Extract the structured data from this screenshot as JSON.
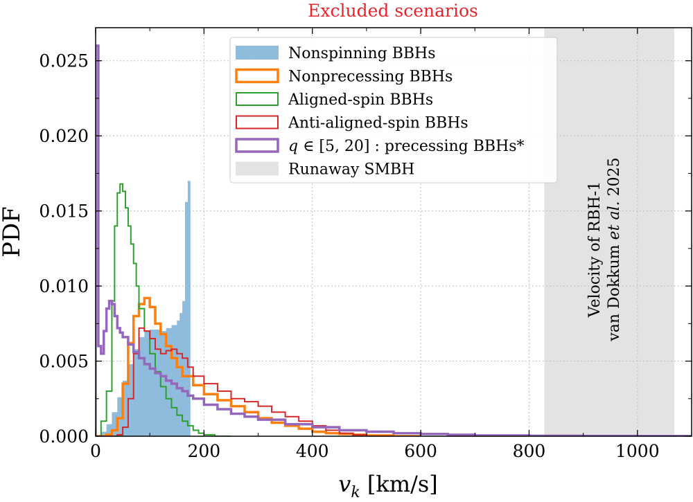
{
  "chart_data": {
    "type": "histogram",
    "title": "Excluded scenarios",
    "xlabel": "v_k [km/s]",
    "ylabel": "PDF",
    "xlim": [
      0,
      1100
    ],
    "ylim": [
      0,
      0.0272
    ],
    "xticks": [
      0,
      200,
      400,
      600,
      800,
      1000
    ],
    "xtick_labels": [
      "0",
      "200",
      "400",
      "600",
      "800",
      "1000"
    ],
    "yticks": [
      0,
      0.005,
      0.01,
      0.015,
      0.02,
      0.025
    ],
    "ytick_labels": [
      "0.000",
      "0.005",
      "0.010",
      "0.015",
      "0.020",
      "0.025"
    ],
    "grid": true,
    "legend_position": "top-center",
    "shaded_region": {
      "name": "Runaway SMBH",
      "x_range": [
        828,
        1068
      ],
      "color": "#e3e3e3",
      "annotation_line1": "Velocity of RBH-1",
      "annotation_line2_pre": "van Dokkum ",
      "annotation_line2_italic": "et al.",
      "annotation_line2_post": " 2025"
    },
    "series": [
      {
        "name": "Nonspinning BBHs",
        "style": "filled",
        "color": "#8fbcdc",
        "x": [
          0,
          10,
          20,
          30,
          40,
          50,
          60,
          70,
          80,
          90,
          100,
          110,
          120,
          130,
          140,
          150,
          155,
          160,
          165,
          170,
          175
        ],
        "y": [
          0,
          0.0003,
          0.0008,
          0.0016,
          0.0026,
          0.0037,
          0.0048,
          0.0058,
          0.0066,
          0.007,
          0.0071,
          0.0071,
          0.007,
          0.0072,
          0.0074,
          0.0077,
          0.0082,
          0.009,
          0.0156,
          0.017,
          0
        ]
      },
      {
        "name": "Nonprecessing BBHs",
        "style": "step-thick",
        "color": "#ff7f0e",
        "x": [
          0,
          20,
          30,
          40,
          50,
          60,
          70,
          80,
          90,
          100,
          110,
          120,
          130,
          140,
          150,
          160,
          180,
          200,
          225,
          250,
          275,
          300,
          325,
          350,
          375,
          400,
          425,
          450,
          475,
          500,
          550,
          600
        ],
        "y": [
          0,
          0.0001,
          0.0004,
          0.0012,
          0.0035,
          0.0062,
          0.008,
          0.0088,
          0.0092,
          0.0086,
          0.0075,
          0.0068,
          0.006,
          0.0052,
          0.0046,
          0.004,
          0.0034,
          0.0028,
          0.0024,
          0.002,
          0.0016,
          0.0012,
          0.0009,
          0.0007,
          0.0005,
          0.0003,
          0.0002,
          0.00015,
          0.0001,
          5e-05,
          0
        ]
      },
      {
        "name": "Aligned-spin BBHs",
        "style": "step",
        "color": "#2ca02c",
        "x": [
          0,
          10,
          20,
          30,
          35,
          40,
          45,
          50,
          55,
          60,
          65,
          70,
          75,
          80,
          90,
          100,
          110,
          120,
          130,
          140,
          150,
          160,
          170,
          180,
          190,
          200,
          220,
          250
        ],
        "y": [
          0,
          0.001,
          0.003,
          0.009,
          0.014,
          0.0162,
          0.0168,
          0.0163,
          0.0152,
          0.014,
          0.0128,
          0.0115,
          0.01,
          0.0085,
          0.007,
          0.0055,
          0.0043,
          0.0033,
          0.0025,
          0.0019,
          0.0014,
          0.001,
          0.0007,
          0.0004,
          0.0002,
          0.0001,
          0
        ]
      },
      {
        "name": "Anti-aligned-spin BBHs",
        "style": "step",
        "color": "#d62728",
        "x": [
          0,
          40,
          50,
          60,
          70,
          80,
          90,
          100,
          110,
          120,
          130,
          140,
          150,
          160,
          170,
          180,
          200,
          225,
          250,
          275,
          300,
          325,
          350,
          375,
          400,
          425,
          450,
          475,
          500,
          550
        ],
        "y": [
          0,
          0.0001,
          0.0006,
          0.0025,
          0.0055,
          0.0072,
          0.007,
          0.0065,
          0.0058,
          0.0055,
          0.0057,
          0.0058,
          0.0055,
          0.0052,
          0.0046,
          0.004,
          0.0035,
          0.003,
          0.0025,
          0.0023,
          0.002,
          0.0016,
          0.0013,
          0.001,
          0.0007,
          0.0004,
          0.0002,
          0.0001,
          0
        ]
      },
      {
        "name": "q ∈ [5, 20] : precessing BBHs*",
        "label_html": [
          {
            "t": "q",
            "i": true
          },
          {
            "t": " ∈ [5, 20] : precessing BBHs*",
            "i": false
          }
        ],
        "style": "step-thick",
        "color": "#9467bd",
        "x": [
          0,
          5,
          10,
          15,
          20,
          25,
          30,
          35,
          40,
          45,
          50,
          60,
          70,
          80,
          90,
          100,
          110,
          120,
          130,
          140,
          150,
          160,
          170,
          180,
          200,
          225,
          250,
          275,
          300,
          350,
          400,
          450,
          500,
          550,
          600,
          650,
          700,
          800,
          900,
          1000,
          1100
        ],
        "y": [
          0.026,
          0.006,
          0.0055,
          0.007,
          0.0085,
          0.009,
          0.0088,
          0.008,
          0.0072,
          0.0069,
          0.0066,
          0.0061,
          0.0056,
          0.0052,
          0.0048,
          0.0045,
          0.0042,
          0.004,
          0.0037,
          0.0035,
          0.0032,
          0.003,
          0.0027,
          0.0025,
          0.0021,
          0.0018,
          0.0015,
          0.0013,
          0.0011,
          0.0008,
          0.0006,
          0.0004,
          0.0003,
          0.0002,
          0.00015,
          0.0001,
          5e-05,
          3e-05,
          2e-05,
          1e-05
        ]
      }
    ]
  }
}
